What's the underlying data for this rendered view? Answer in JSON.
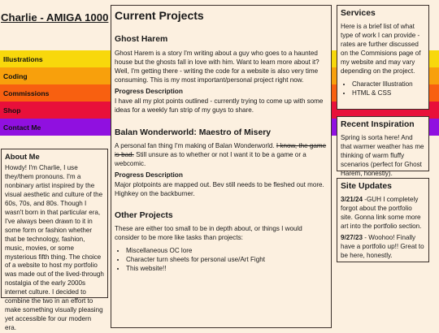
{
  "site_title": "Charlie - AMIGA 1000",
  "nav": {
    "colors": [
      "#f8d80c",
      "#f8a00c",
      "#f86010",
      "#e8103a",
      "#9010e0"
    ],
    "items": [
      {
        "label": "Illustrations"
      },
      {
        "label": "Coding"
      },
      {
        "label": "Commissions"
      },
      {
        "label": "Shop"
      },
      {
        "label": "Contact Me"
      }
    ]
  },
  "about": {
    "heading": "About Me",
    "body": "Howdy! I'm Charlie, I use they/them pronouns. I'm a nonbinary artist inspired by the visual aesthetic and culture of the 60s, 70s, and 80s. Though I wasn't born in that particular era, I've always been drawn to it in some form or fashion whether that be technology, fashion, music, movies, or some mysterious fifth thing. The choice of a website to host my portfolio was made out of the lived-through nostalgia of the early 2000s internet culture. I decided to combine the two in an effort to make something visually pleasing yet accessible for our modern era."
  },
  "main": {
    "heading": "Current Projects",
    "project1": {
      "title": "Ghost Harem",
      "desc": "Ghost Harem is a story I'm writing about a guy who goes to a haunted house but the ghosts fall in love with him. Want to learn more about it? Well, I'm getting there - writing the code for a website is also very time consuming. This is my most important/personal project right now.",
      "progress_heading": "Progress Description",
      "progress": "I have all my plot points outlined - currently trying to come up with some ideas for a weekly fun strip of my guys to share."
    },
    "project2": {
      "title": "Balan Wonderworld: Maestro of Misery",
      "desc_before": "A personal fan thing I'm making of Balan Wonderworld. ",
      "desc_struck": "I know, the game is bad.",
      "desc_after": " Still unsure as to whether or not I want it to be a game or a webcomic.",
      "progress_heading": "Progress Description",
      "progress": "Major plotpoints are mapped out. Bev still needs to be fleshed out more. Highkey on the backburner."
    },
    "other": {
      "title": "Other Projects",
      "desc": "These are either too small to be in depth about, or things I would consider to be more like tasks than projects:",
      "items": [
        "Miscellaneous OC lore",
        "Character turn sheets for personal use/Art Fight",
        "This website!!"
      ]
    }
  },
  "services": {
    "heading": "Services",
    "desc": "Here is a brief list of what type of work I can provide - rates are further discussed on the Commisions page of my website and may vary depending on the project.",
    "items": [
      "Character Illustration",
      "HTML & CSS"
    ]
  },
  "inspiration": {
    "heading": "Recent Inspiration",
    "body": "Spring is sorta here! And that warmer weather has me thinking of warm fluffy scenarios (perfect for Ghost Harem, honestly)."
  },
  "updates": {
    "heading": "Site Updates",
    "entries": [
      {
        "date": "3/21/24",
        "text": " -GUH I completely forgot about the portfolio site. Gonna link some more art into the portfolio section."
      },
      {
        "date": "9/27/23",
        "text": " - Woohoo! Finally have a portfolio up!! Great to be here, honestly."
      }
    ]
  }
}
